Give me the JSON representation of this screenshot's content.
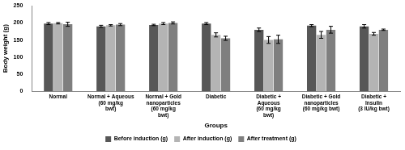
{
  "chart_data": {
    "type": "bar",
    "x_label": "Groups",
    "y_label": "Body weight (g)",
    "categories": [
      "Normal",
      [
        "Normal + Aqueous",
        "(60 mg/kg",
        "bwt)"
      ],
      [
        "Normal + Gold",
        "nanoparticles",
        "(60 mg/kg",
        "bwt)"
      ],
      "Diabetic",
      [
        "Diabetic +",
        "Aqueous",
        "(60 mg/kg",
        "bwt)"
      ],
      [
        "Diabetic + Gold",
        "nanoparticles",
        "(60 mg/kg bwt)"
      ],
      [
        "Diabetic +",
        "Insulin",
        "(3 IU/kg bwt)"
      ]
    ],
    "series": [
      {
        "name": "Before induction (g)",
        "color": "#575757",
        "values": [
          198,
          190,
          194,
          198,
          180,
          192,
          190
        ],
        "errors": [
          3,
          3,
          2,
          3,
          5,
          3,
          5
        ]
      },
      {
        "name": "After induction (g)",
        "color": "#b4b4b4",
        "values": [
          199,
          193,
          198,
          165,
          150,
          165,
          168
        ],
        "errors": [
          2,
          2,
          3,
          6,
          10,
          10,
          4
        ]
      },
      {
        "name": "After treatment (g)",
        "color": "#7f7f7f",
        "values": [
          196,
          195,
          200,
          155,
          152,
          180,
          180
        ],
        "errors": [
          6,
          3,
          3,
          6,
          12,
          10,
          2
        ]
      }
    ],
    "ylim": [
      0,
      250
    ],
    "yticks": [
      0,
      50,
      100,
      150,
      200,
      250
    ],
    "grid": false,
    "legend": "bottom"
  }
}
